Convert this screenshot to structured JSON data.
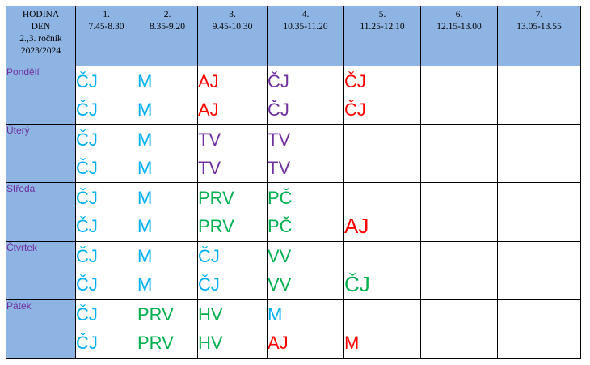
{
  "header": {
    "corner": [
      "HODINA",
      "DEN",
      "2.,3. ročník",
      "2023/2024"
    ],
    "periods": [
      {
        "num": "1.",
        "time": "7.45-8.30"
      },
      {
        "num": "2.",
        "time": "8.35-9.20"
      },
      {
        "num": "3.",
        "time": "9.45-10.30"
      },
      {
        "num": "4.",
        "time": "10.35-11.20"
      },
      {
        "num": "5.",
        "time": "11.25-12.10"
      },
      {
        "num": "6.",
        "time": "12.15-13.00"
      },
      {
        "num": "7.",
        "time": "13.05-13.55"
      }
    ]
  },
  "colors": {
    "header_bg": "#8eb4e3",
    "day_label": "#7030a0",
    "blue": "#00b0f0",
    "red": "#ff0000",
    "purple": "#7030a0",
    "green": "#00b050"
  },
  "days": [
    {
      "name": "Pondělí",
      "slots": [
        {
          "top": "ČJ",
          "bottom": "ČJ",
          "color": "blue"
        },
        {
          "top": "M",
          "bottom": "M",
          "color": "blue"
        },
        {
          "top": "AJ",
          "bottom": "AJ",
          "color": "red"
        },
        {
          "top": "ČJ",
          "bottom": "ČJ",
          "color": "purple"
        },
        {
          "top": "ČJ",
          "bottom": "ČJ",
          "color": "red"
        },
        {
          "top": "",
          "bottom": "",
          "color": "blue"
        },
        {
          "top": "",
          "bottom": "",
          "color": "blue"
        }
      ]
    },
    {
      "name": "Úterý",
      "slots": [
        {
          "top": "ČJ",
          "bottom": "ČJ",
          "color": "blue"
        },
        {
          "top": "M",
          "bottom": "M",
          "color": "blue"
        },
        {
          "top": "TV",
          "bottom": "TV",
          "color": "purple"
        },
        {
          "top": "TV",
          "bottom": "TV",
          "color": "purple"
        },
        {
          "top": "",
          "bottom": "",
          "color": "blue"
        },
        {
          "top": "",
          "bottom": "",
          "color": "blue"
        },
        {
          "top": "",
          "bottom": "",
          "color": "blue"
        }
      ]
    },
    {
      "name": "Středa",
      "slots": [
        {
          "top": "ČJ",
          "bottom": "ČJ",
          "color": "blue"
        },
        {
          "top": "M",
          "bottom": "M",
          "color": "blue"
        },
        {
          "top": "PRV",
          "bottom": "PRV",
          "color": "green"
        },
        {
          "top": "PČ",
          "bottom": "PČ",
          "color": "green"
        },
        {
          "top": "",
          "bottom": "AJ",
          "color": "red",
          "big": true
        },
        {
          "top": "",
          "bottom": "",
          "color": "blue"
        },
        {
          "top": "",
          "bottom": "",
          "color": "blue"
        }
      ]
    },
    {
      "name": "Čtvrtek",
      "slots": [
        {
          "top": "ČJ",
          "bottom": "ČJ",
          "color": "blue"
        },
        {
          "top": "M",
          "bottom": "M",
          "color": "blue"
        },
        {
          "top": "ČJ",
          "bottom": "ČJ",
          "color": "blue"
        },
        {
          "top": "VV",
          "bottom": "VV",
          "color": "green"
        },
        {
          "top": "",
          "bottom": "ČJ",
          "color": "green",
          "big": true
        },
        {
          "top": "",
          "bottom": "",
          "color": "blue"
        },
        {
          "top": "",
          "bottom": "",
          "color": "blue"
        }
      ]
    },
    {
      "name": "Pátek",
      "slots": [
        {
          "top": "ČJ",
          "bottom": "ČJ",
          "color": "blue"
        },
        {
          "top": "PRV",
          "bottom": "PRV",
          "color": "green"
        },
        {
          "top": "HV",
          "bottom": "HV",
          "color": "green"
        },
        {
          "top": "M",
          "bottom": "AJ",
          "color": "blue",
          "bottom_color": "red"
        },
        {
          "top": "",
          "bottom": "M",
          "color": "red"
        },
        {
          "top": "",
          "bottom": "",
          "color": "blue"
        },
        {
          "top": "",
          "bottom": "",
          "color": "blue"
        }
      ]
    }
  ]
}
